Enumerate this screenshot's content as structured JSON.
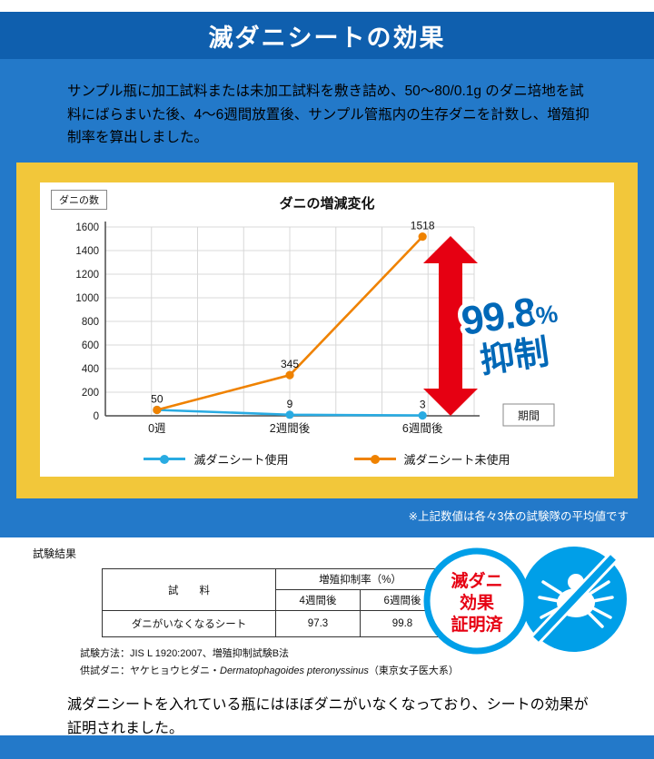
{
  "colors": {
    "header_bg": "#0f5fae",
    "page_blue": "#2379c9",
    "panel_yellow": "#f2c73a",
    "series_used_blue": "#29abe2",
    "series_unused_orange": "#ef8200",
    "arrow_red": "#e60012",
    "suppression_blue": "#0068b7",
    "badge_blue": "#009fe8",
    "badge_red": "#e60012"
  },
  "header": {
    "title": "滅ダニシートの効果"
  },
  "intro": {
    "text": "サンプル瓶に加工試料または未加工試料を敷き詰め、50〜80/0.1g のダニ培地を試料にばらまいた後、4〜6週間放置後、サンプル管瓶内の生存ダニを計数し、増殖抑制率を算出しました。"
  },
  "chart_data": [
    {
      "type": "line",
      "title": "ダニの増減変化",
      "y_axis_label": "ダニの数",
      "x_axis_label": "期間",
      "categories": [
        "0週",
        "2週間後",
        "6週間後"
      ],
      "ylim": [
        0,
        1600
      ],
      "ytick": 200,
      "grid": true,
      "legend_position": "bottom",
      "series": [
        {
          "name": "滅ダニシート使用",
          "color": "#29abe2",
          "values": [
            50,
            9,
            3
          ],
          "point_labels": [
            "",
            "9",
            "3"
          ]
        },
        {
          "name": "滅ダニシート未使用",
          "color": "#ef8200",
          "values": [
            50,
            345,
            1518
          ],
          "point_labels": [
            "50",
            "345",
            "1518"
          ]
        }
      ]
    },
    {
      "type": "table",
      "columns": [
        "試　　料",
        "増殖抑制率（%）"
      ],
      "sub_columns": [
        "4週間後",
        "6週間後"
      ],
      "rows": [
        [
          "ダニがいなくなるシート",
          "97.3",
          "99.8"
        ]
      ]
    }
  ],
  "suppression_badge": {
    "value": "99.8",
    "percent": "%",
    "label": "抑制"
  },
  "panel_note": "※上記数値は各々3体の試験隊の平均値です",
  "results": {
    "section_label": "試験結果",
    "method_note": "試験方法：JIS L 1920:2007、増殖抑制試験B法",
    "mite_note_prefix": "供試ダニ：ヤケヒョウヒダニ・",
    "mite_note_latin": "Dermatophagoides pteronyssinus",
    "mite_note_suffix": "（東京女子医大系）",
    "stamp": {
      "line1": "滅ダニ",
      "line2": "効果",
      "line3": "証明済"
    }
  },
  "conclusion": {
    "text": "滅ダニシートを入れている瓶にはほぼダニがいなくなっており、シートの効果が証明されました。"
  }
}
